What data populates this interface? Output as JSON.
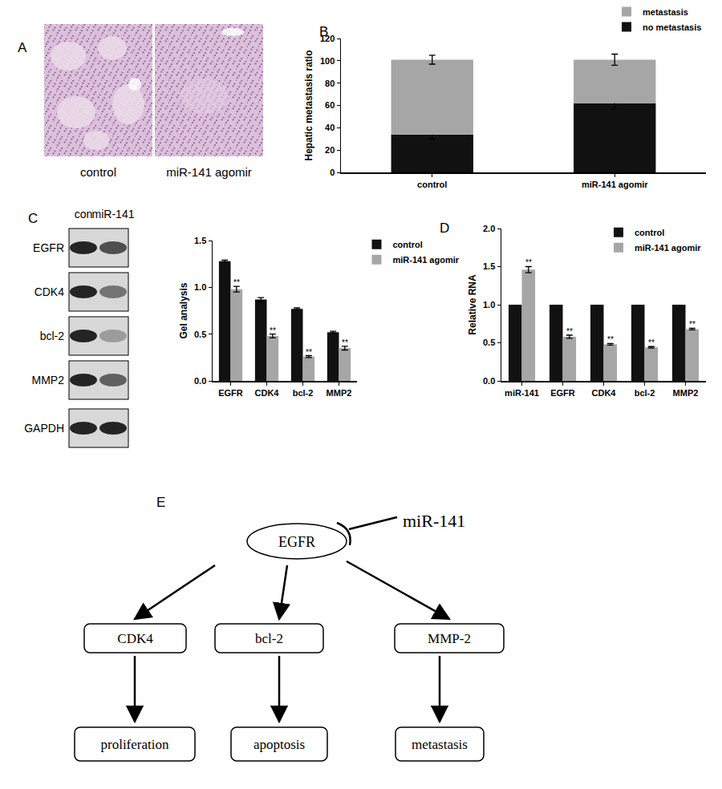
{
  "panels": {
    "A": {
      "label": "A",
      "images": [
        {
          "caption": "control"
        },
        {
          "caption": "miR-141 agomir"
        }
      ]
    },
    "C_blot": {
      "label": "C",
      "lanes": [
        "con",
        "miR-141"
      ],
      "proteins": [
        "EGFR",
        "CDK4",
        "bcl-2",
        "MMP2",
        "GAPDH"
      ]
    },
    "E": {
      "label": "E",
      "regulator": "miR-141",
      "hub": "EGFR",
      "targets": [
        {
          "gene": "CDK4",
          "process": "proliferation"
        },
        {
          "gene": "bcl-2",
          "process": "apoptosis"
        },
        {
          "gene": "MMP-2",
          "process": "metastasis"
        }
      ]
    }
  },
  "chart_data": [
    {
      "label": "B",
      "type": "bar",
      "stacked": true,
      "y_label": "Hepatic metastasis ratio",
      "categories": [
        "control",
        "miR-141 agomir"
      ],
      "series": [
        {
          "name": "no metastasis",
          "color": "#111111",
          "values": [
            34,
            62
          ],
          "errors": [
            4,
            5
          ]
        },
        {
          "name": "metastasis",
          "color": "#a6a6a6",
          "values": [
            67,
            39
          ],
          "errors": [
            4,
            5
          ]
        }
      ],
      "ylim": [
        0,
        120
      ],
      "yticks": [
        0,
        20,
        40,
        60,
        80,
        100,
        120
      ],
      "legend": "top right"
    },
    {
      "type": "bar",
      "y_label": "Gel analysis",
      "categories": [
        "EGFR",
        "CDK4",
        "bcl-2",
        "MMP2"
      ],
      "series": [
        {
          "name": "control",
          "color": "#111111",
          "values": [
            1.28,
            0.87,
            0.77,
            0.52
          ],
          "errors": [
            0.01,
            0.02,
            0.01,
            0.01
          ]
        },
        {
          "name": "miR-141 agomir",
          "color": "#a6a6a6",
          "values": [
            0.98,
            0.48,
            0.26,
            0.35
          ],
          "errors": [
            0.03,
            0.02,
            0.01,
            0.02
          ],
          "significance": [
            "**",
            "**",
            "**",
            "**"
          ]
        }
      ],
      "ylim": [
        0,
        1.5
      ],
      "yticks": [
        {
          "value": 0,
          "label": "0.0"
        },
        {
          "value": 0.5,
          "label": "0.5"
        },
        {
          "value": 1,
          "label": "1.0"
        },
        {
          "value": 1.5,
          "label": "1.5"
        }
      ],
      "legend": "right"
    },
    {
      "label": "D",
      "type": "bar",
      "y_label": "Relative RNA",
      "categories": [
        "miR-141",
        "EGFR",
        "CDK4",
        "bcl-2",
        "MMP2"
      ],
      "series": [
        {
          "name": "control",
          "color": "#111111",
          "values": [
            1,
            1,
            1,
            1,
            1
          ]
        },
        {
          "name": "miR-141 agomir",
          "color": "#a6a6a6",
          "values": [
            1.46,
            0.58,
            0.48,
            0.44,
            0.68
          ],
          "errors": [
            0.04,
            0.02,
            0.01,
            0.01,
            0.01
          ],
          "significance": [
            "**",
            "**",
            "**",
            "**",
            "**"
          ]
        }
      ],
      "ylim": [
        0,
        2
      ],
      "yticks": [
        {
          "value": 0,
          "label": "0.0"
        },
        {
          "value": 0.5,
          "label": "0.5"
        },
        {
          "value": 1,
          "label": "1.0"
        },
        {
          "value": 1.5,
          "label": "1.5"
        },
        {
          "value": 2,
          "label": "2.0"
        }
      ],
      "legend": "upper right"
    }
  ]
}
